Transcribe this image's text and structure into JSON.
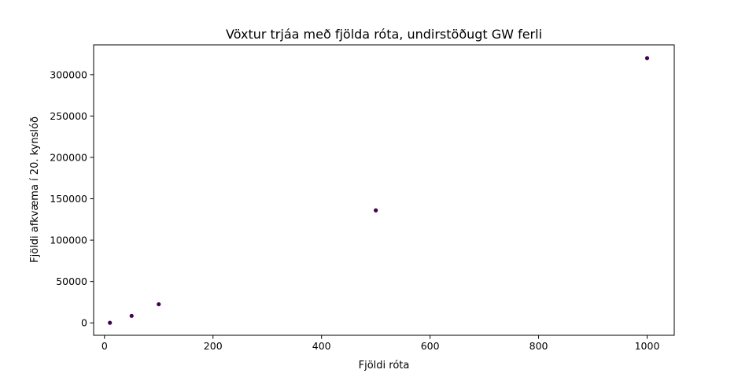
{
  "chart_data": {
    "type": "scatter",
    "title": "Vöxtur trjáa með fjölda róta, undirstöðugt GW ferli",
    "xlabel": "Fjöldi róta",
    "ylabel": "Fjöldi afkvæma í 20. kynslóð",
    "x": [
      10,
      50,
      100,
      500,
      1000
    ],
    "y": [
      100,
      8500,
      22500,
      136000,
      320000
    ],
    "xlim": [
      -20,
      1050
    ],
    "ylim": [
      -15000,
      336000
    ],
    "xticks": [
      0,
      200,
      400,
      600,
      800,
      1000
    ],
    "xtick_labels": [
      "0",
      "200",
      "400",
      "600",
      "800",
      "1000"
    ],
    "yticks": [
      0,
      50000,
      100000,
      150000,
      200000,
      250000,
      300000
    ],
    "ytick_labels": [
      "0",
      "50000",
      "100000",
      "150000",
      "200000",
      "250000",
      "300000"
    ],
    "grid": false,
    "marker_color": "#440154"
  }
}
